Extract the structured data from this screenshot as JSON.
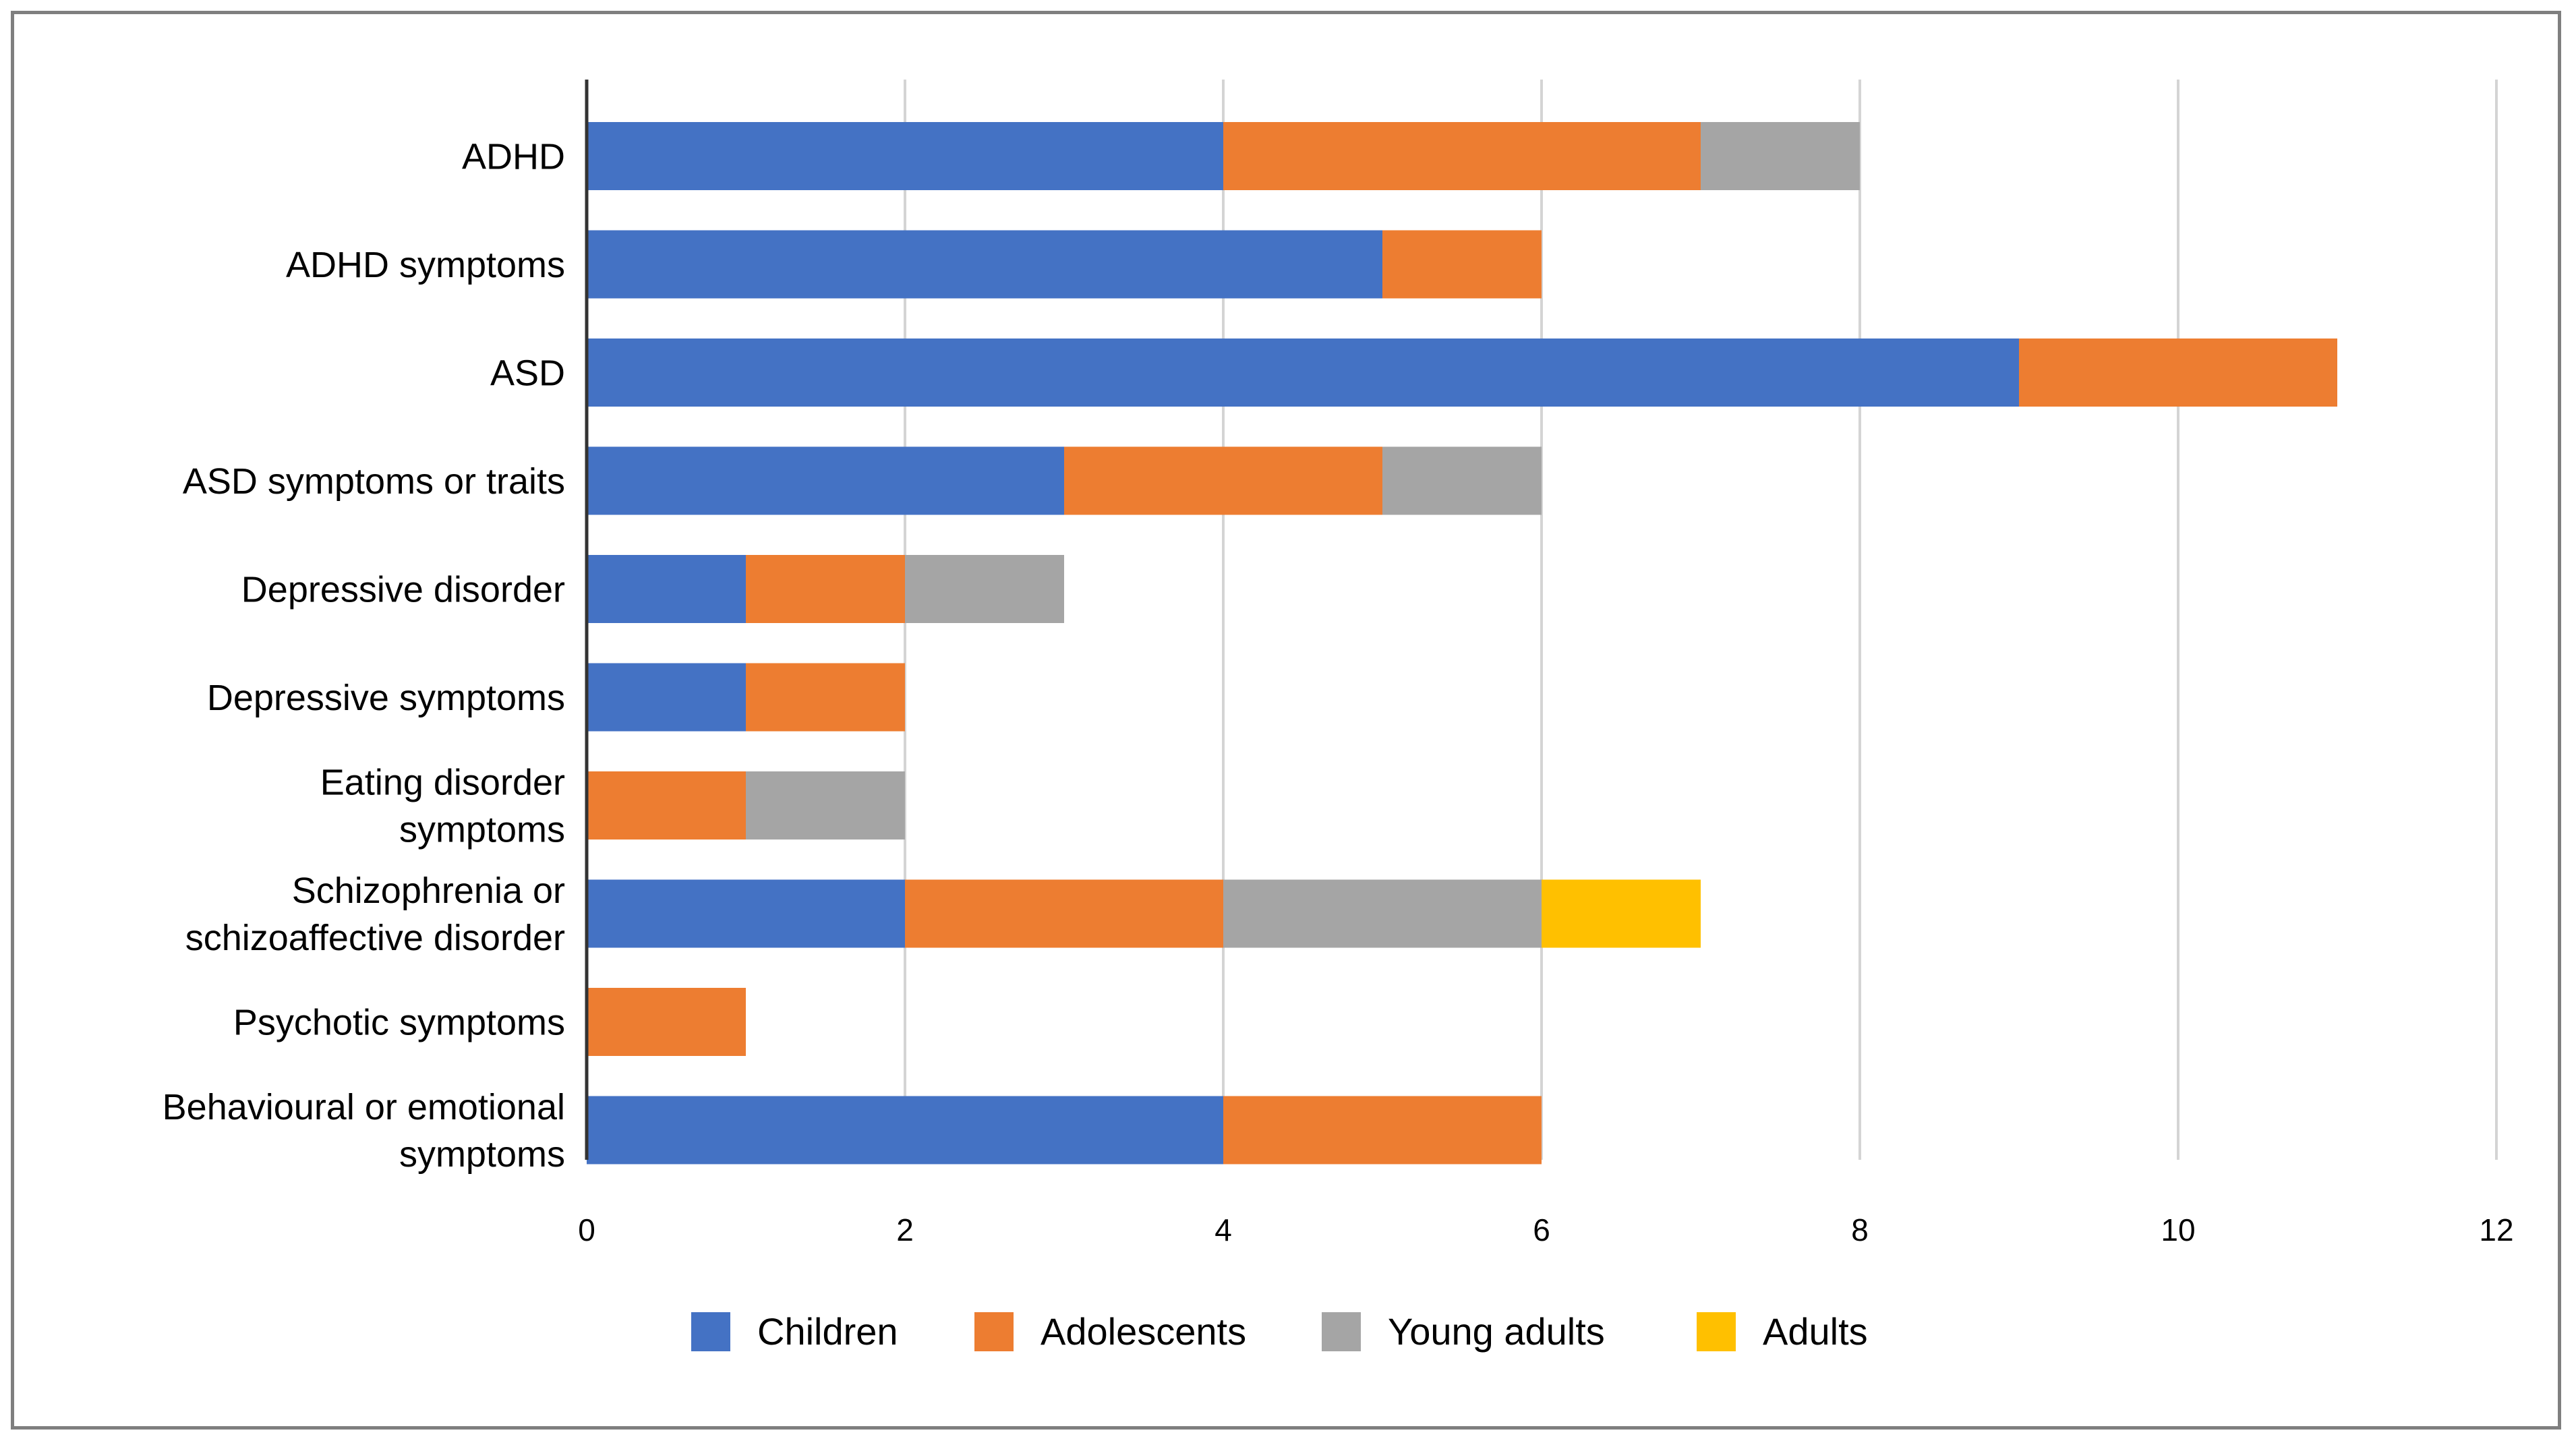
{
  "chart_data": {
    "type": "bar",
    "orientation": "horizontal",
    "stacked": true,
    "title": "",
    "xlabel": "",
    "ylabel": "",
    "xlim": [
      0,
      12
    ],
    "xticks": [
      0,
      2,
      4,
      6,
      8,
      10,
      12
    ],
    "grid": true,
    "legend_position": "bottom",
    "categories": [
      [
        "ADHD"
      ],
      [
        "ADHD symptoms"
      ],
      [
        "ASD"
      ],
      [
        "ASD symptoms or traits"
      ],
      [
        "Depressive disorder"
      ],
      [
        "Depressive symptoms"
      ],
      [
        "Eating disorder",
        "symptoms"
      ],
      [
        "Schizophrenia or",
        "schizoaffective disorder"
      ],
      [
        "Psychotic symptoms"
      ],
      [
        "Behavioural or emotional",
        "symptoms"
      ]
    ],
    "series": [
      {
        "name": "Children",
        "color": "#4472C4",
        "values": [
          4,
          5,
          9,
          3,
          1,
          1,
          0,
          2,
          0,
          4
        ]
      },
      {
        "name": "Adolescents",
        "color": "#ED7D31",
        "values": [
          3,
          1,
          2,
          2,
          1,
          1,
          1,
          2,
          1,
          2
        ]
      },
      {
        "name": "Young adults",
        "color": "#A5A5A5",
        "values": [
          1,
          0,
          0,
          1,
          1,
          0,
          1,
          2,
          0,
          0
        ]
      },
      {
        "name": "Adults",
        "color": "#FFC000",
        "values": [
          0,
          0,
          0,
          0,
          0,
          0,
          0,
          1,
          0,
          0
        ]
      }
    ]
  }
}
